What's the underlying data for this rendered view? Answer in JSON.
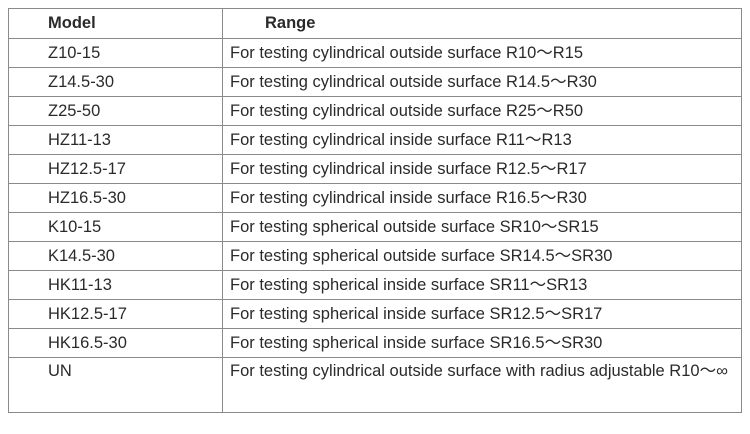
{
  "table": {
    "headers": [
      "Model",
      "Range"
    ],
    "rows": [
      {
        "model": "Z10-15",
        "range": "For testing cylindrical outside surface R10～R15"
      },
      {
        "model": "Z14.5-30",
        "range": "For testing cylindrical outside surface R14.5～R30"
      },
      {
        "model": "Z25-50",
        "range": "For testing cylindrical outside surface R25～R50"
      },
      {
        "model": "HZ11-13",
        "range": "For testing cylindrical inside surface R11～R13"
      },
      {
        "model": "HZ12.5-17",
        "range": "For testing cylindrical inside surface R12.5～R17"
      },
      {
        "model": "HZ16.5-30",
        "range": "For testing cylindrical inside surface R16.5～R30"
      },
      {
        "model": "K10-15",
        "range": "For testing spherical outside surface SR10～SR15"
      },
      {
        "model": "K14.5-30",
        "range": "For testing spherical outside surface SR14.5～SR30"
      },
      {
        "model": "HK11-13",
        "range": "For testing spherical inside surface SR11～SR13"
      },
      {
        "model": "HK12.5-17",
        "range": "For testing spherical inside surface SR12.5～SR17"
      },
      {
        "model": "HK16.5-30",
        "range": "For testing spherical inside surface SR16.5～SR30"
      },
      {
        "model": "UN",
        "range": "For testing cylindrical outside surface with radius adjustable R10～∞"
      }
    ]
  }
}
